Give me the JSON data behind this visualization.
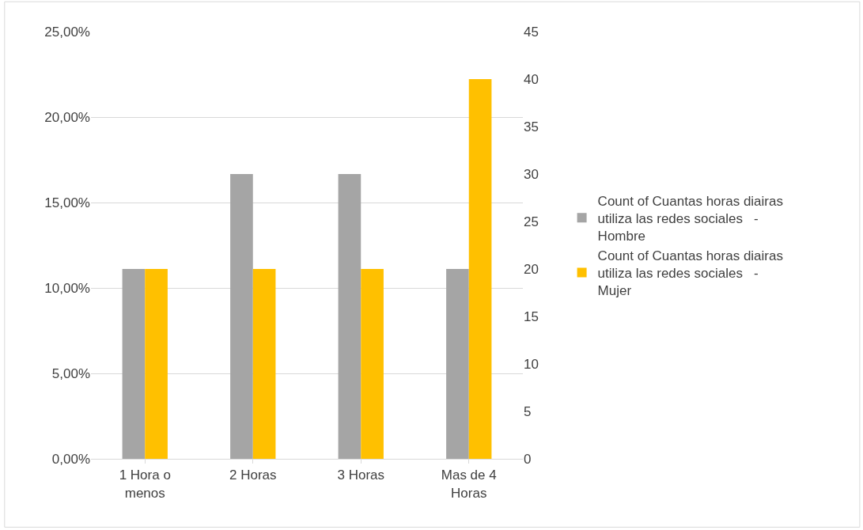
{
  "chart_data": {
    "type": "bar",
    "categories": [
      "1 Hora o menos",
      "2 Horas",
      "3 Horas",
      "Mas de 4 Horas"
    ],
    "series": [
      {
        "name": "Count of Cuantas horas diairas utiliza las redes sociales   - Hombre",
        "color": "#a5a5a5",
        "values": [
          11.11,
          16.67,
          16.67,
          11.11
        ]
      },
      {
        "name": "Count of Cuantas horas diairas utiliza las redes sociales   - Mujer",
        "color": "#ffc000",
        "values": [
          20,
          20,
          20,
          40
        ],
        "axis": "y2"
      }
    ],
    "ylim": [
      0,
      25
    ],
    "yticks": [
      {
        "value": 0,
        "label": "0,00%"
      },
      {
        "value": 5,
        "label": "5,00%"
      },
      {
        "value": 10,
        "label": "10,00%"
      },
      {
        "value": 15,
        "label": "15,00%"
      },
      {
        "value": 20,
        "label": "20,00%"
      },
      {
        "value": 25,
        "label": "25,00%"
      }
    ],
    "y2lim": [
      0,
      45
    ],
    "y2ticks": [
      0,
      5,
      10,
      15,
      20,
      25,
      30,
      35,
      40,
      45
    ],
    "grid": "y",
    "legend": "right"
  }
}
